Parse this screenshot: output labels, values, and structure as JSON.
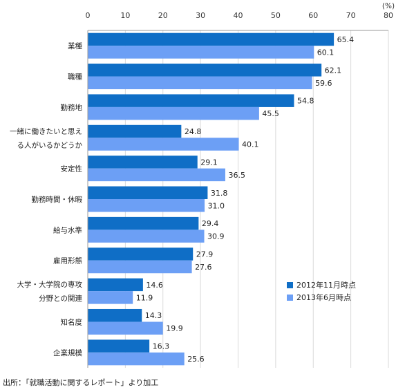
{
  "chart_data": {
    "type": "bar",
    "orientation": "horizontal",
    "categories": [
      [
        "業種"
      ],
      [
        "職種"
      ],
      [
        "勤務地"
      ],
      [
        "一緒に働きたいと思え",
        "る人がいるかどうか"
      ],
      [
        "安定性"
      ],
      [
        "勤務時間・休暇"
      ],
      [
        "給与水準"
      ],
      [
        "雇用形態"
      ],
      [
        "大学・大学院の専攻",
        "分野との関連"
      ],
      [
        "知名度"
      ],
      [
        "企業規模"
      ]
    ],
    "series": [
      {
        "name": "2012年11月時点",
        "color": "#0f6ec6",
        "values": [
          65.4,
          62.1,
          54.8,
          24.8,
          29.1,
          31.8,
          29.4,
          27.9,
          14.6,
          14.3,
          16.3
        ]
      },
      {
        "name": "2013年6月時点",
        "color": "#6c9ff5",
        "values": [
          60.1,
          59.6,
          45.5,
          40.1,
          36.5,
          31.0,
          30.9,
          27.6,
          11.9,
          19.9,
          25.6
        ]
      }
    ],
    "xlim": [
      0,
      80
    ],
    "xticks": [
      0,
      10,
      20,
      30,
      40,
      50,
      60,
      70,
      80
    ],
    "unit_label": "(%)",
    "grid": true,
    "legend_position": "right"
  },
  "source_note": "出所：「就職活動に関するレポート」より加工"
}
